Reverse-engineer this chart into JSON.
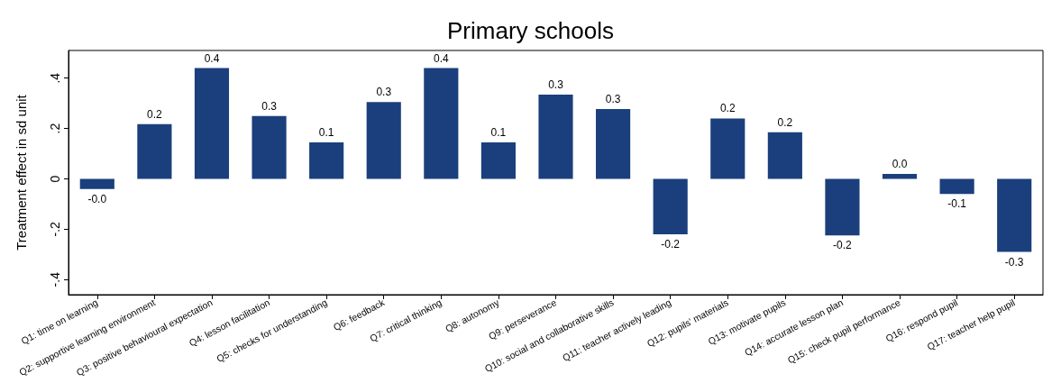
{
  "chart_data": {
    "type": "bar",
    "title": "Primary schools",
    "ylabel": "Treatment effect in sd unit",
    "categories": [
      "Q1: time on learning",
      "Q2: supportive learning environment",
      "Q3: positive behavioural expectation",
      "Q4: lesson facilitation",
      "Q5: checks for understanding",
      "Q6: feedback",
      "Q7: critical thinking",
      "Q8: autonomy",
      "Q9: perseverance",
      "Q10: social and collaborative skills",
      "Q11: teacher actively leading",
      "Q12: pupils' materials",
      "Q13: motivate pupils",
      "Q14: accurate lesson plan",
      "Q15: check pupil performance",
      "Q16: respond pupil",
      "Q17: teacher help pupil"
    ],
    "values": [
      -0.04,
      0.217,
      0.44,
      0.25,
      0.145,
      0.305,
      0.44,
      0.145,
      0.335,
      0.277,
      -0.22,
      0.24,
      0.185,
      -0.225,
      0.02,
      -0.06,
      -0.29
    ],
    "value_labels": [
      "-0.0",
      "0.2",
      "0.4",
      "0.3",
      "0.1",
      "0.3",
      "0.4",
      "0.1",
      "0.3",
      "0.3",
      "-0.2",
      "0.2",
      "0.2",
      "-0.2",
      "0.0",
      "-0.1",
      "-0.3"
    ],
    "color": "#1a3f7c",
    "ylim": [
      -0.46,
      0.51
    ],
    "yticks": [
      {
        "value": -0.4,
        "label": "-.4"
      },
      {
        "value": -0.2,
        "label": "-.2"
      },
      0,
      {
        "value": 0.2,
        "label": ".2"
      },
      {
        "value": 0.4,
        "label": ".4"
      }
    ],
    "grid": false
  }
}
